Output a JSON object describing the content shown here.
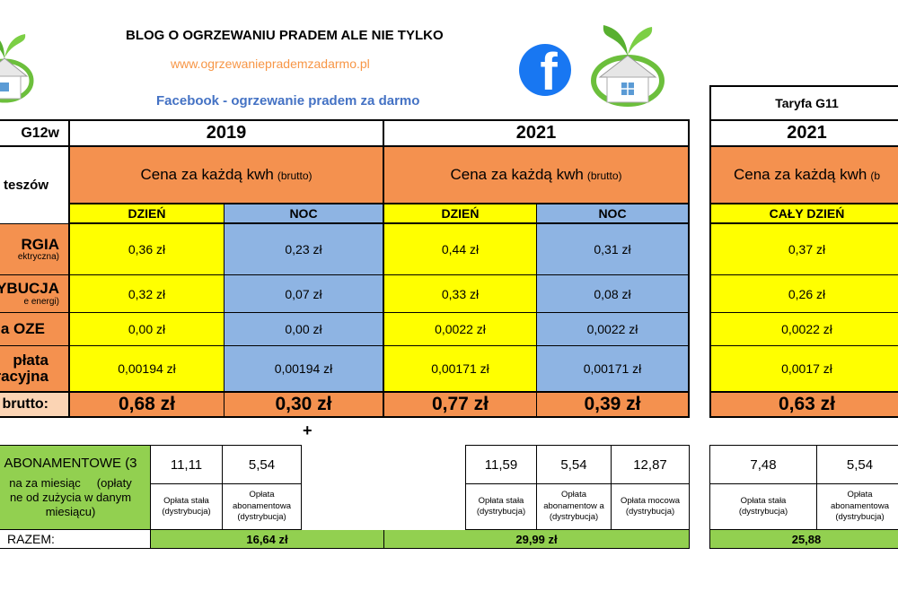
{
  "header": {
    "title": "BLOG O OGRZEWANIU PRADEM ALE NIE TYLKO",
    "url": "www.ogrzewanieprademzadarmo.pl",
    "facebook": "Facebook - ogrzewanie pradem za darmo",
    "facebook_letter": "f"
  },
  "colors": {
    "orange": "#f4914f",
    "yellow": "#ffff00",
    "blue": "#8eb4e3",
    "green": "#92d050",
    "fb_blue": "#1877f2",
    "url_orange": "#f79646",
    "link_blue": "#4472c4"
  },
  "left_col": {
    "tariff": "G12w",
    "costs_label": "teszów",
    "energy_big": "RGIA",
    "energy_small": "ektryczna)",
    "dist_big": "YBUCJA",
    "dist_small": "e energi)",
    "oze": "a OZE",
    "cogen_1": "płata",
    "cogen_2": "racyjna",
    "total": "brutto:",
    "abon_1": "ABONAMENTOWE (3",
    "abon_2": "na za miesiąc     (opłaty",
    "abon_3": "ne od zużycia w danym",
    "abon_4": "miesiącu)",
    "razem": "RAZEM:"
  },
  "g12w": [
    {
      "year": "2019",
      "price_header": "Cena za każdą kwh",
      "price_note": "(brutto)",
      "day_label": "DZIEŃ",
      "night_label": "NOC",
      "day": [
        "0,36 zł",
        "0,32 zł",
        "0,00 zł",
        "0,00194 zł"
      ],
      "night": [
        "0,23 zł",
        "0,07 zł",
        "0,00 zł",
        "0,00194 zł"
      ],
      "total_day": "0,68 zł",
      "total_night": "0,30 zł"
    },
    {
      "year": "2021",
      "price_header": "Cena za każdą kwh",
      "price_note": "(brutto)",
      "day_label": "DZIEŃ",
      "night_label": "NOC",
      "day": [
        "0,44 zł",
        "0,33 zł",
        "0,0022 zł",
        "0,00171 zł"
      ],
      "night": [
        "0,31 zł",
        "0,08 zł",
        "0,0022 zł",
        "0,00171 zł"
      ],
      "total_day": "0,77 zł",
      "total_night": "0,39 zł"
    }
  ],
  "g11": {
    "title": "Taryfa G11",
    "year": "2021",
    "price_header": "Cena za każdą kwh",
    "price_note": "(b",
    "all_day": "CAŁY DZIEŃ",
    "values": [
      "0,37 zł",
      "0,26 zł",
      "0,0022 zł",
      "0,0017 zł"
    ],
    "total": "0,63 zł"
  },
  "plus": "+",
  "fees": {
    "y2019": [
      {
        "value": "11,11",
        "label": "Opłata stała (dystrybucja)"
      },
      {
        "value": "5,54",
        "label": "Opłata abonamentowa (dystrybucja)"
      }
    ],
    "sum_2019": "16,64 zł",
    "y2021": [
      {
        "value": "11,59",
        "label": "Opłata stała (dystrybucja)"
      },
      {
        "value": "5,54",
        "label": "Opłata abonamentow a (dystrybucja)"
      },
      {
        "value": "12,87",
        "label": "Opłata mocowa (dystrybucja)"
      }
    ],
    "sum_2021": "29,99 zł",
    "g11": [
      {
        "value": "7,48",
        "label": "Opłata stała (dystrybucja)"
      },
      {
        "value": "5,54",
        "label": "Opłata abonamentowa (dystrybucja)"
      }
    ],
    "sum_g11": "25,88"
  }
}
